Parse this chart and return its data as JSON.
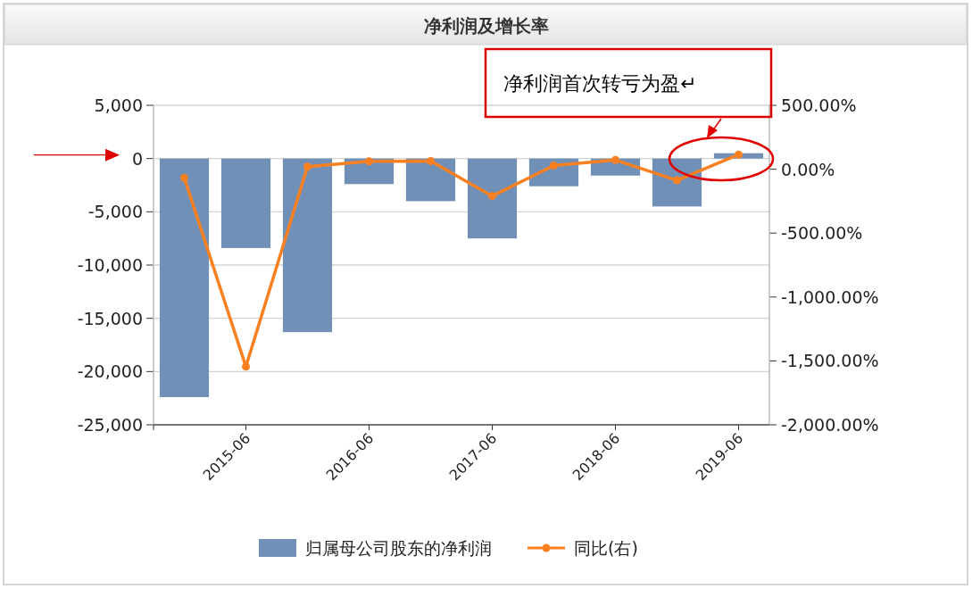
{
  "chart_data": {
    "type": "bar",
    "title": "净利润及增长率",
    "categories": [
      null,
      "2015-06",
      null,
      "2016-06",
      null,
      "2017-06",
      null,
      "2018-06",
      null,
      "2019-06"
    ],
    "series": [
      {
        "name": "归属母公司股东的净利润",
        "color": "#7190b8",
        "values": [
          -22400,
          -8400,
          -16300,
          -2400,
          -4000,
          -7500,
          -2600,
          -1600,
          -4500,
          500
        ]
      },
      {
        "name": "同比(右)",
        "type": "line",
        "axis": "y2",
        "color": "#f98020",
        "values": [
          -68,
          -1545,
          20,
          62,
          64,
          -210,
          29,
          72,
          -87,
          115
        ]
      }
    ],
    "ylim": [
      -25000,
      5000
    ],
    "yticks": [
      {
        "value": -25000,
        "label": "-25,000"
      },
      {
        "value": -20000,
        "label": "-20,000"
      },
      {
        "value": -15000,
        "label": "-15,000"
      },
      {
        "value": -10000,
        "label": "-10,000"
      },
      {
        "value": -5000,
        "label": "-5,000"
      },
      0,
      {
        "value": 5000,
        "label": "5,000"
      }
    ],
    "y2lim": [
      -2000,
      500
    ],
    "y2ticks": [
      {
        "value": -2000,
        "label": "-2,000.00%"
      },
      {
        "value": -1500,
        "label": "-1,500.00%"
      },
      {
        "value": -1000,
        "label": "-1,000.00%"
      },
      {
        "value": -500,
        "label": "-500.00%"
      },
      {
        "value": 0,
        "label": "0.00%"
      },
      {
        "value": 500,
        "label": "500.00%"
      }
    ],
    "annotations": [
      "净利润首次转亏为盈↵"
    ],
    "grid": "y",
    "legend": "bottom",
    "marker": "circle",
    "line_style": "solid"
  }
}
